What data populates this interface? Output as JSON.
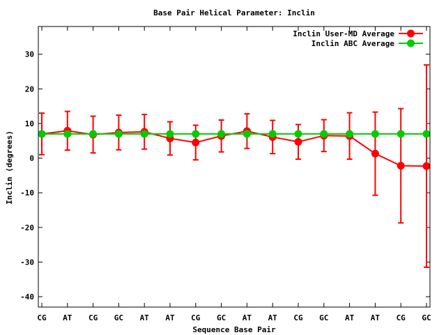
{
  "chart_data": {
    "type": "line",
    "title": "Base Pair Helical Parameter: Inclin",
    "xlabel": "Sequence Base Pair",
    "ylabel": "Inclin (degrees)",
    "categories": [
      "CG",
      "AT",
      "CG",
      "GC",
      "AT",
      "AT",
      "CG",
      "GC",
      "AT",
      "AT",
      "CG",
      "GC",
      "AT",
      "AT",
      "CG",
      "GC"
    ],
    "ylim": [
      -43,
      38
    ],
    "yticks": [
      -40,
      -30,
      -20,
      -10,
      0,
      10,
      20,
      30
    ],
    "legend_position": "top-right",
    "series": [
      {
        "name": "Inclin User-MD Average",
        "color": "#ff0000",
        "values": [
          7.0,
          7.9,
          6.8,
          7.4,
          7.6,
          5.7,
          4.5,
          6.4,
          7.8,
          6.1,
          4.7,
          6.5,
          6.4,
          1.3,
          -2.2,
          -2.3
        ],
        "error": [
          6.0,
          5.6,
          5.3,
          5.0,
          5.0,
          4.8,
          5.0,
          4.6,
          5.0,
          4.8,
          5.0,
          4.6,
          6.7,
          12.0,
          16.5,
          29.2
        ]
      },
      {
        "name": "Inclin ABC Average",
        "color": "#00cc00",
        "values": [
          7.0,
          7.0,
          7.0,
          7.0,
          7.0,
          7.0,
          7.0,
          7.0,
          7.0,
          7.0,
          7.0,
          7.0,
          7.0,
          7.0,
          7.0,
          7.0
        ]
      }
    ]
  }
}
